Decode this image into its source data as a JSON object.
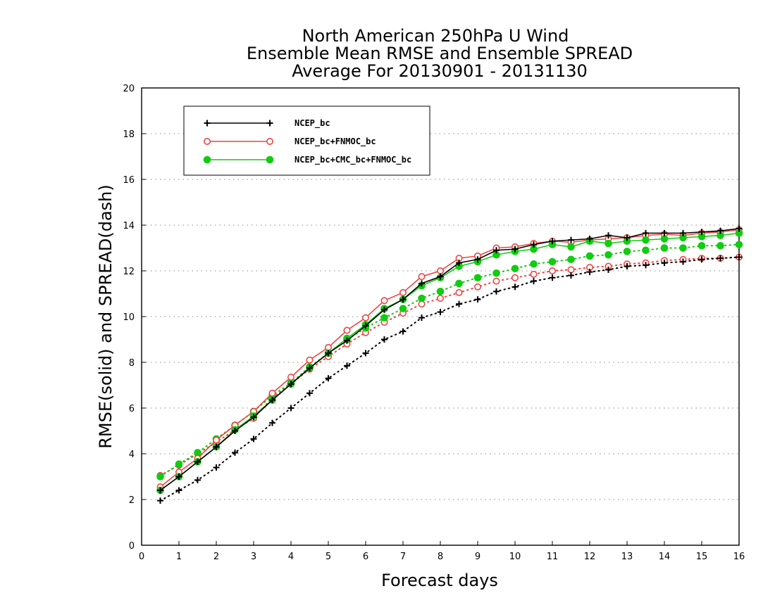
{
  "chart_data": {
    "type": "line",
    "title_lines": [
      "North American 250hPa U Wind",
      "Ensemble Mean RMSE and Ensemble SPREAD",
      "Average For 20130901 - 20131130"
    ],
    "xlabel": "Forecast days",
    "ylabel": "RMSE(solid) and SPREAD(dash)",
    "xlim": [
      0,
      16
    ],
    "ylim": [
      0,
      20
    ],
    "xticks": [
      0,
      1,
      2,
      3,
      4,
      5,
      6,
      7,
      8,
      9,
      10,
      11,
      12,
      13,
      14,
      15,
      16
    ],
    "yticks": [
      0,
      2,
      4,
      6,
      8,
      10,
      12,
      14,
      16,
      18,
      20
    ],
    "grid": "horizontal dotted",
    "legend_position": "top-left",
    "x": [
      0.5,
      1,
      1.5,
      2,
      2.5,
      3,
      3.5,
      4,
      4.5,
      5,
      5.5,
      6,
      6.5,
      7,
      7.5,
      8,
      8.5,
      9,
      9.5,
      10,
      10.5,
      11,
      11.5,
      12,
      12.5,
      13,
      13.5,
      14,
      14.5,
      15,
      15.5,
      16
    ],
    "series": [
      {
        "name": "NCEP_bc",
        "color": "#000000",
        "marker": "plus",
        "rmse": [
          2.4,
          3.0,
          3.65,
          4.3,
          5.0,
          5.6,
          6.35,
          7.05,
          7.75,
          8.4,
          8.95,
          9.6,
          10.3,
          10.75,
          11.45,
          11.75,
          12.35,
          12.5,
          12.9,
          12.95,
          13.15,
          13.3,
          13.35,
          13.4,
          13.55,
          13.45,
          13.65,
          13.65,
          13.65,
          13.7,
          13.75,
          13.85
        ],
        "spread": [
          1.95,
          2.4,
          2.85,
          3.4,
          4.05,
          4.65,
          5.35,
          6.0,
          6.65,
          7.3,
          7.85,
          8.4,
          9.0,
          9.35,
          9.95,
          10.2,
          10.55,
          10.75,
          11.1,
          11.3,
          11.55,
          11.7,
          11.8,
          11.95,
          12.05,
          12.2,
          12.25,
          12.35,
          12.4,
          12.5,
          12.55,
          12.6
        ]
      },
      {
        "name": "NCEP_bc+FNMOC_bc",
        "color": "#ee4444",
        "marker": "open-circle",
        "rmse": [
          2.55,
          3.2,
          3.8,
          4.6,
          5.25,
          5.85,
          6.65,
          7.35,
          8.1,
          8.65,
          9.4,
          9.95,
          10.7,
          11.05,
          11.75,
          12.0,
          12.55,
          12.65,
          13.0,
          13.05,
          13.2,
          13.3,
          13.25,
          13.35,
          13.4,
          13.45,
          13.55,
          13.6,
          13.55,
          13.65,
          13.7,
          13.8
        ],
        "spread": [
          3.05,
          3.5,
          4.0,
          4.5,
          5.05,
          5.55,
          6.45,
          7.05,
          7.7,
          8.25,
          8.8,
          9.3,
          9.75,
          10.15,
          10.55,
          10.8,
          11.05,
          11.3,
          11.55,
          11.7,
          11.85,
          12.0,
          12.05,
          12.15,
          12.2,
          12.3,
          12.35,
          12.45,
          12.5,
          12.55,
          12.55,
          12.6
        ]
      },
      {
        "name": "NCEP_bc+CMC_bc+FNMOC_bc",
        "color": "#11cc11",
        "marker": "filled-circle",
        "rmse": [
          2.4,
          3.0,
          3.65,
          4.3,
          5.05,
          5.65,
          6.35,
          7.05,
          7.75,
          8.4,
          9.05,
          9.65,
          10.35,
          10.75,
          11.35,
          11.7,
          12.2,
          12.4,
          12.7,
          12.85,
          12.95,
          13.15,
          13.05,
          13.3,
          13.2,
          13.3,
          13.35,
          13.4,
          13.45,
          13.5,
          13.55,
          13.65
        ],
        "spread": [
          3.0,
          3.55,
          4.05,
          4.65,
          5.25,
          5.85,
          6.55,
          7.1,
          7.8,
          8.4,
          9.0,
          9.5,
          9.95,
          10.35,
          10.8,
          11.1,
          11.45,
          11.7,
          11.9,
          12.1,
          12.3,
          12.4,
          12.5,
          12.65,
          12.7,
          12.85,
          12.9,
          13.0,
          13.0,
          13.1,
          13.1,
          13.15
        ]
      }
    ]
  }
}
